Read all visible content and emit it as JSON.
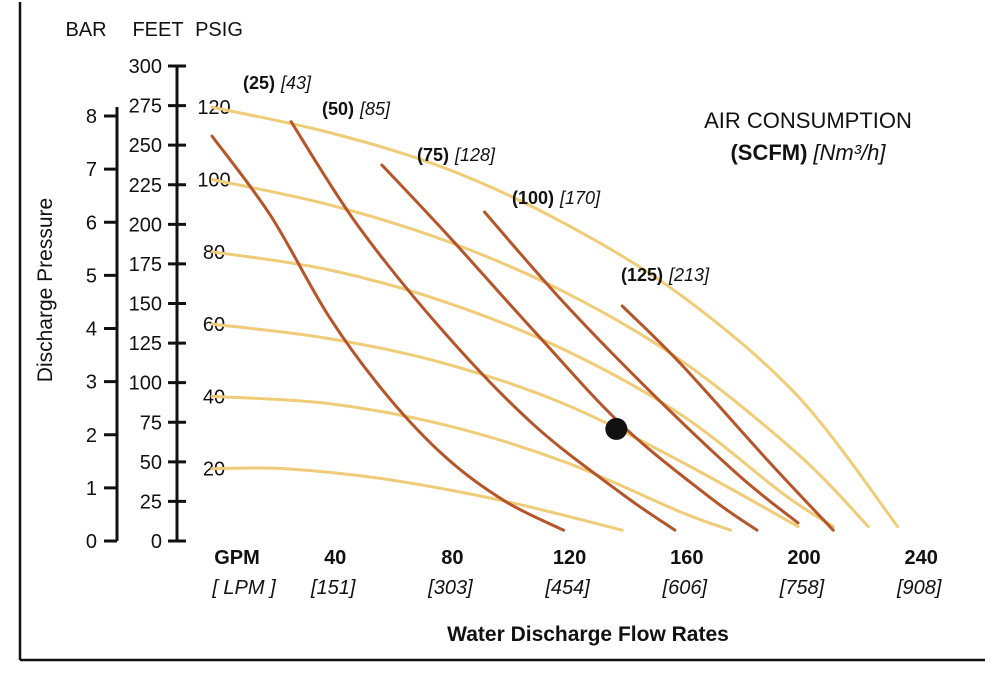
{
  "chart_data": {
    "type": "line",
    "title": "",
    "legend_title_line1": "AIR CONSUMPTION",
    "legend_title_unit": "(SCFM)",
    "legend_title_unit_metric": "[Nm³/h]",
    "xlabel": "Water Discharge Flow Rates",
    "ylabel": "Discharge Pressure",
    "x_unit_primary": "GPM",
    "x_unit_secondary": "[ LPM ]",
    "xlim": [
      0,
      240
    ],
    "x_ticks": [
      {
        "gpm": "40",
        "lpm": "[151]"
      },
      {
        "gpm": "80",
        "lpm": "[303]"
      },
      {
        "gpm": "120",
        "lpm": "[454]"
      },
      {
        "gpm": "160",
        "lpm": "[606]"
      },
      {
        "gpm": "200",
        "lpm": "[758]"
      },
      {
        "gpm": "240",
        "lpm": "[908]"
      }
    ],
    "ylim_psig": [
      0,
      130
    ],
    "y_axes": {
      "bar": {
        "header": "BAR",
        "ticks": [
          "0",
          "1",
          "2",
          "3",
          "4",
          "5",
          "6",
          "7",
          "8"
        ]
      },
      "feet": {
        "header": "FEET",
        "ticks": [
          "0",
          "25",
          "50",
          "75",
          "100",
          "125",
          "150",
          "175",
          "200",
          "225",
          "250",
          "275",
          "300"
        ]
      },
      "psig": {
        "header": "PSIG",
        "ticks": [
          "20",
          "40",
          "60",
          "80",
          "100",
          "120"
        ]
      }
    },
    "air_pressure_curves": {
      "description_color": "#f0cc78",
      "series": [
        {
          "psig": 120,
          "points": [
            [
              0,
              120
            ],
            [
              40,
              113
            ],
            [
              80,
              103
            ],
            [
              120,
              88
            ],
            [
              160,
              68
            ],
            [
              200,
              40
            ],
            [
              234,
              4
            ]
          ]
        },
        {
          "psig": 100,
          "points": [
            [
              0,
              100
            ],
            [
              40,
              93
            ],
            [
              80,
              83
            ],
            [
              120,
              69
            ],
            [
              160,
              50
            ],
            [
              200,
              24
            ],
            [
              224,
              4
            ]
          ]
        },
        {
          "psig": 80,
          "points": [
            [
              0,
              80
            ],
            [
              40,
              75
            ],
            [
              80,
              66
            ],
            [
              120,
              53
            ],
            [
              160,
              35
            ],
            [
              195,
              13
            ],
            [
              212,
              4
            ]
          ]
        },
        {
          "psig": 60,
          "points": [
            [
              0,
              60
            ],
            [
              40,
              56
            ],
            [
              80,
              49
            ],
            [
              120,
              38
            ],
            [
              160,
              22
            ],
            [
              200,
              4
            ]
          ]
        },
        {
          "psig": 40,
          "points": [
            [
              0,
              40
            ],
            [
              40,
              38
            ],
            [
              80,
              32
            ],
            [
              120,
              22
            ],
            [
              160,
              8
            ],
            [
              177,
              3
            ]
          ]
        },
        {
          "psig": 20,
          "points": [
            [
              0,
              20
            ],
            [
              25,
              20
            ],
            [
              60,
              17
            ],
            [
              100,
              11
            ],
            [
              140,
              3
            ]
          ]
        }
      ]
    },
    "air_consumption_curves": {
      "color": "#b5552a",
      "series": [
        {
          "label_scfm": "(25)",
          "label_nm3h": "[43]",
          "points": [
            [
              0,
              112
            ],
            [
              20,
              90
            ],
            [
              40,
              62
            ],
            [
              60,
              40
            ],
            [
              80,
              23
            ],
            [
              100,
              11
            ],
            [
              120,
              3
            ]
          ]
        },
        {
          "label_scfm": "(50)",
          "label_nm3h": "[85]",
          "points": [
            [
              27,
              116
            ],
            [
              50,
              87
            ],
            [
              80,
              57
            ],
            [
              110,
              32
            ],
            [
              140,
              13
            ],
            [
              158,
              3
            ]
          ]
        },
        {
          "label_scfm": "(75)",
          "label_nm3h": "[128]",
          "points": [
            [
              58,
              104
            ],
            [
              80,
              85
            ],
            [
              110,
              58
            ],
            [
              140,
              32
            ],
            [
              170,
              12
            ],
            [
              186,
              3
            ]
          ]
        },
        {
          "label_scfm": "(100)",
          "label_nm3h": "[170]",
          "points": [
            [
              93,
              91
            ],
            [
              120,
              66
            ],
            [
              150,
              41
            ],
            [
              180,
              18
            ],
            [
              200,
              5
            ]
          ]
        },
        {
          "label_scfm": "(125)",
          "label_nm3h": "[213]",
          "points": [
            [
              140,
              65
            ],
            [
              160,
              49
            ],
            [
              190,
              22
            ],
            [
              212,
              3
            ]
          ]
        }
      ]
    },
    "marked_point": {
      "gpm": 138,
      "psig": 31
    },
    "grid": false
  }
}
